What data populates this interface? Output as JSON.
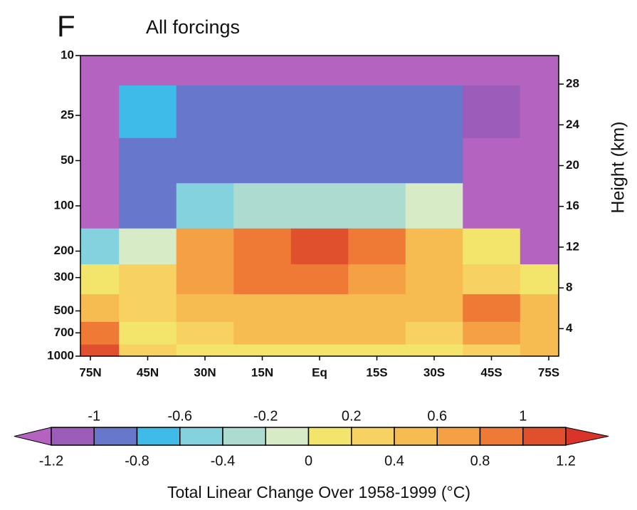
{
  "chart_data": {
    "type": "contour",
    "panel": "F",
    "title": "All forcings",
    "categories": [
      "75N",
      "45N",
      "30N",
      "15N",
      "Eq",
      "15S",
      "30S",
      "45S",
      "75S"
    ],
    "yscale": "log",
    "ylim": [
      1000,
      10
    ],
    "yticks": [
      10,
      25,
      50,
      100,
      200,
      300,
      500,
      700,
      1000
    ],
    "y2label": "Height (km)",
    "y2lim": [
      1.3,
      30.8
    ],
    "y2ticks": [
      4,
      8,
      12,
      16,
      20,
      24,
      28
    ],
    "z": [
      [
        -1.4,
        -1.4,
        -1.4,
        -1.4,
        -1.4,
        -1.4,
        -1.4,
        -1.4,
        -1.4
      ],
      [
        -1.3,
        -0.7,
        -1.0,
        -1.0,
        -1.0,
        -1.0,
        -1.0,
        -1.1,
        -1.3
      ],
      [
        -1.3,
        -0.9,
        -0.9,
        -0.9,
        -0.9,
        -0.9,
        -0.9,
        -1.3,
        -1.3
      ],
      [
        -1.3,
        -0.9,
        -0.5,
        -0.3,
        -0.3,
        -0.3,
        -0.1,
        -1.3,
        -1.3
      ],
      [
        -0.5,
        -0.1,
        0.7,
        0.9,
        1.1,
        0.9,
        0.5,
        0.1,
        -1.3
      ],
      [
        0.1,
        0.3,
        0.7,
        0.9,
        0.9,
        0.7,
        0.5,
        0.3,
        0.1
      ],
      [
        0.5,
        0.3,
        0.5,
        0.5,
        0.5,
        0.5,
        0.5,
        0.9,
        0.5
      ],
      [
        0.9,
        0.1,
        0.3,
        0.5,
        0.5,
        0.5,
        0.3,
        0.7,
        0.5
      ],
      [
        1.1,
        0.3,
        0.1,
        0.1,
        0.1,
        0.1,
        0.1,
        0.3,
        0.5
      ]
    ],
    "colorbar": {
      "levels": [
        -1.2,
        -1,
        -0.8,
        -0.6,
        -0.4,
        -0.2,
        0,
        0.2,
        0.4,
        0.6,
        0.8,
        1,
        1.2
      ],
      "colors": [
        "#b464c0",
        "#9c5cba",
        "#6777cc",
        "#3fbbea",
        "#84d2de",
        "#acdcd0",
        "#d6ebc6",
        "#f3e56c",
        "#f7d262",
        "#f6bc52",
        "#f4a044",
        "#ef7a36",
        "#e0502c",
        "#d8342a"
      ],
      "label": "Total Linear Change Over 1958-1999 (°C)"
    }
  }
}
